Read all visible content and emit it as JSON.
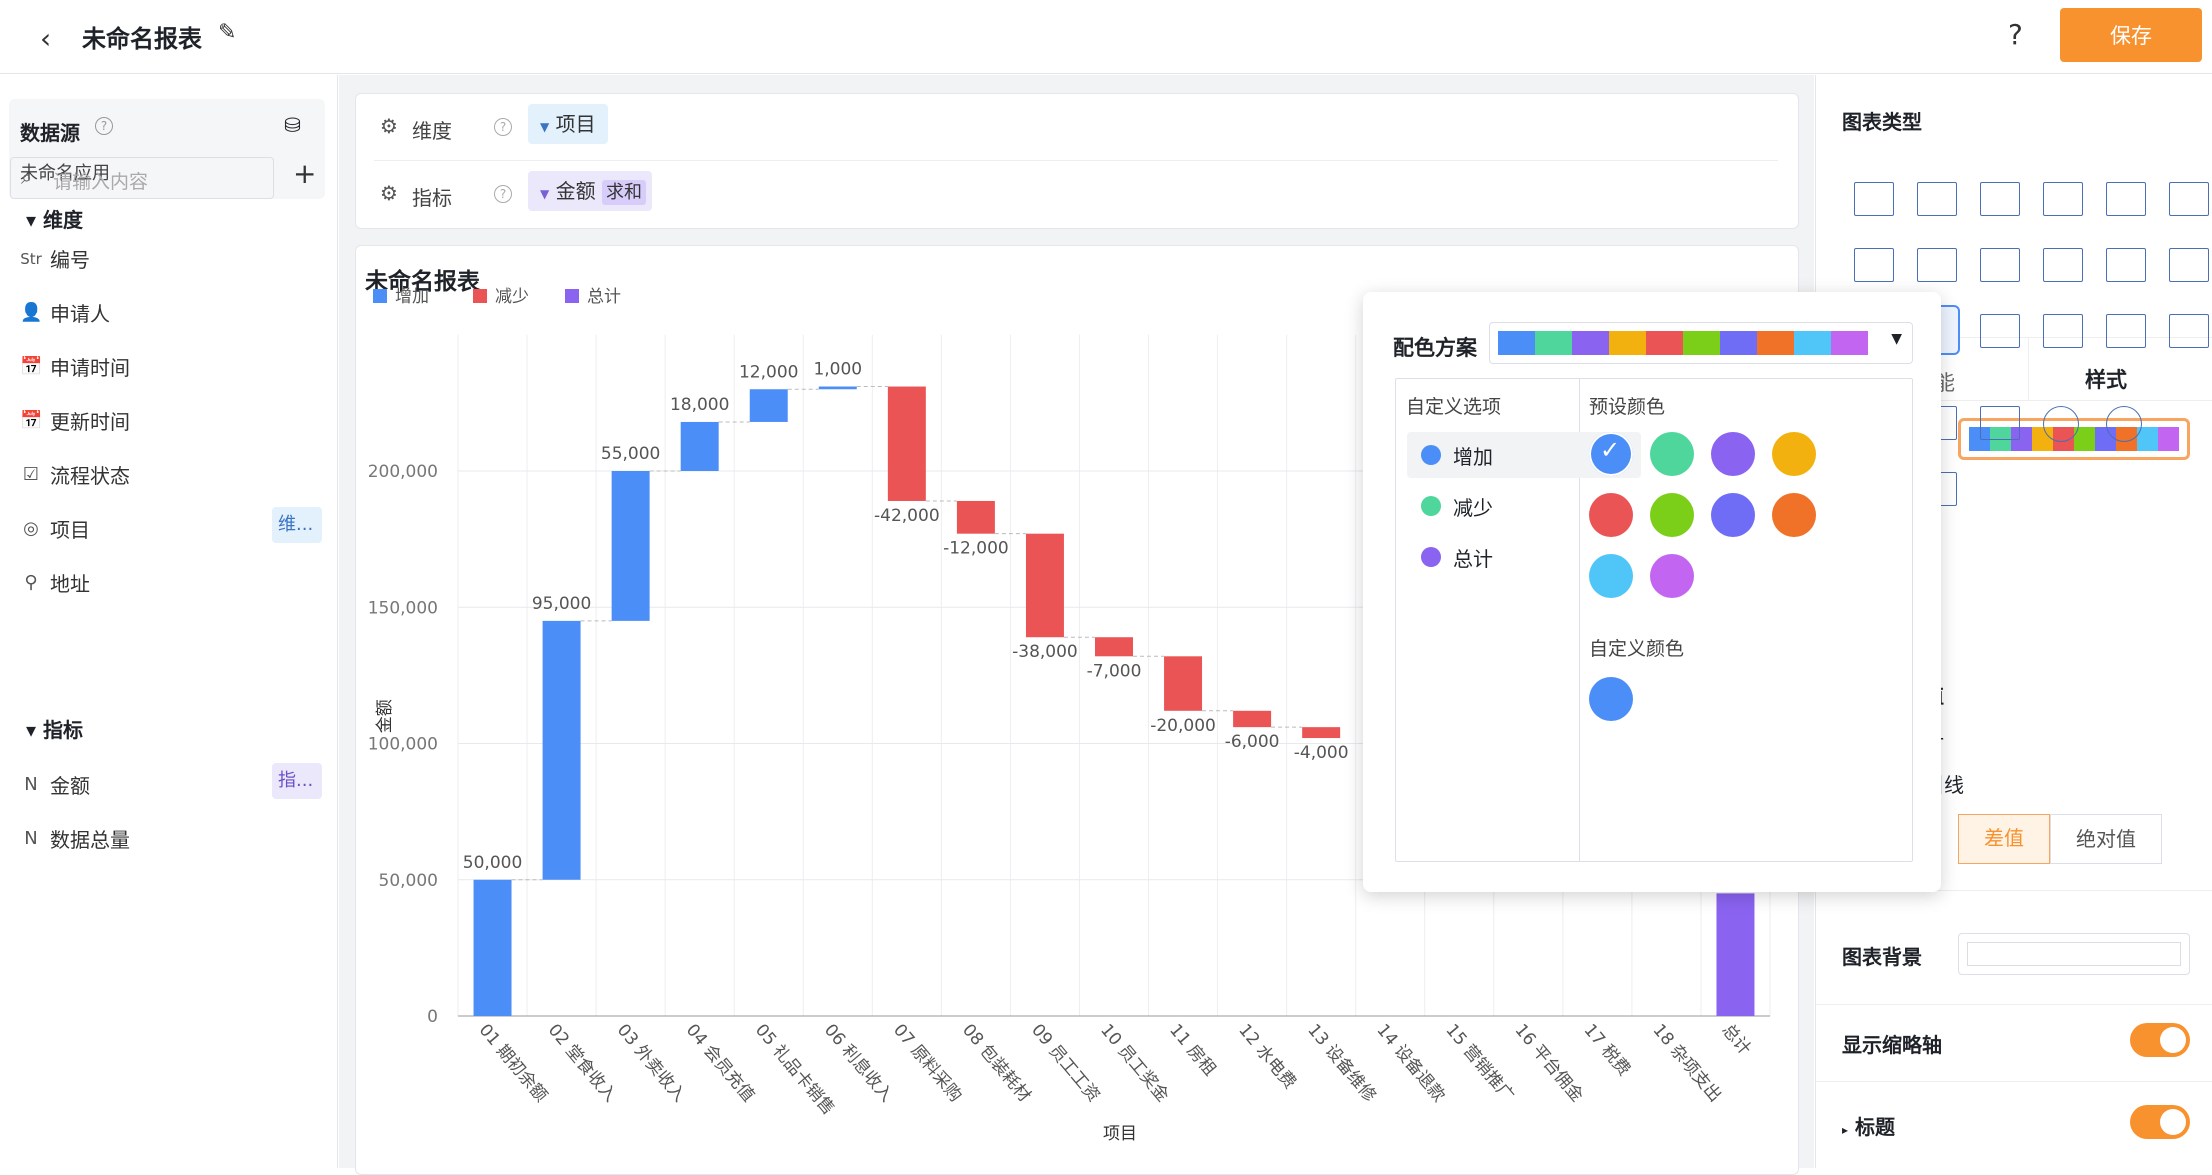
{
  "header": {
    "back_icon": "chevron-left-icon",
    "title": "未命名报表",
    "edit_icon": "pencil-icon",
    "help_icon": "question-icon",
    "help_text": "?",
    "save_label": "保存"
  },
  "sidebar": {
    "datasource_label": "数据源",
    "datasource_name": "未命名应用",
    "search_placeholder": "请输入内容",
    "add_icon": "plus-icon",
    "dimension_header": "维度",
    "measure_header": "指标",
    "dimensions": [
      {
        "icon_text": "Str",
        "icon": "string-icon",
        "label": "编号"
      },
      {
        "icon_text": "👤",
        "icon": "person-icon",
        "label": "申请人"
      },
      {
        "icon_text": "📅",
        "icon": "calendar-icon",
        "label": "申请时间"
      },
      {
        "icon_text": "📅",
        "icon": "calendar-icon",
        "label": "更新时间"
      },
      {
        "icon_text": "☑",
        "icon": "checkbox-icon",
        "label": "流程状态"
      },
      {
        "icon_text": "◎",
        "icon": "radio-icon",
        "label": "项目",
        "tag": "维..."
      },
      {
        "icon_text": "⚲",
        "icon": "location-icon",
        "label": "地址"
      }
    ],
    "measures": [
      {
        "icon_text": "N",
        "icon": "number-icon",
        "label": "金额",
        "tag": "指..."
      },
      {
        "icon_text": "N",
        "icon": "number-icon",
        "label": "数据总量"
      }
    ]
  },
  "fields": {
    "dimension_label": "维度",
    "dimension_value": "项目",
    "measure_label": "指标",
    "measure_value": "金额",
    "measure_agg": "求和"
  },
  "chart_card": {
    "title": "未命名报表"
  },
  "chart_data": {
    "type": "bar",
    "subtype": "waterfall",
    "xlabel": "项目",
    "ylabel": "金额",
    "ylim": [
      0,
      250000
    ],
    "yticks": [
      {
        "v": 0,
        "t": "0"
      },
      {
        "v": 50000,
        "t": "50,000"
      },
      {
        "v": 100000,
        "t": "100,000"
      },
      {
        "v": 150000,
        "t": "150,000"
      },
      {
        "v": 200000,
        "t": "200,000"
      }
    ],
    "legend": [
      {
        "name": "增加",
        "color": "#4c8ef7"
      },
      {
        "name": "减少",
        "color": "#ea5455"
      },
      {
        "name": "总计",
        "color": "#8a63f0"
      }
    ],
    "categories": [
      "01 期初余额",
      "02 堂食收入",
      "03 外卖收入",
      "04 会员充值",
      "05 礼品卡销售",
      "06 利息收入",
      "07 原料采购",
      "08 包装耗材",
      "09 员工工资",
      "10 员工奖金",
      "11 房租",
      "12 水电费",
      "13 设备维修",
      "14 设备退款",
      "15 营销推广",
      "16 平台佣金",
      "17 税费",
      "18 杂项支出",
      "总计"
    ],
    "bars": [
      {
        "start": 0,
        "end": 50000,
        "kind": "inc",
        "label": "50,000"
      },
      {
        "start": 50000,
        "end": 145000,
        "kind": "inc",
        "label": "95,000"
      },
      {
        "start": 145000,
        "end": 200000,
        "kind": "inc",
        "label": "55,000"
      },
      {
        "start": 200000,
        "end": 218000,
        "kind": "inc",
        "label": "18,000"
      },
      {
        "start": 218000,
        "end": 230000,
        "kind": "inc",
        "label": "12,000"
      },
      {
        "start": 230000,
        "end": 231000,
        "kind": "inc",
        "label": "1,000"
      },
      {
        "start": 231000,
        "end": 189000,
        "kind": "dec",
        "label": "-42,000"
      },
      {
        "start": 189000,
        "end": 177000,
        "kind": "dec",
        "label": "-12,000"
      },
      {
        "start": 177000,
        "end": 139000,
        "kind": "dec",
        "label": "-38,000"
      },
      {
        "start": 139000,
        "end": 132000,
        "kind": "dec",
        "label": "-7,000"
      },
      {
        "start": 132000,
        "end": 112000,
        "kind": "dec",
        "label": "-20,000"
      },
      {
        "start": 112000,
        "end": 106000,
        "kind": "dec",
        "label": "-6,000"
      },
      {
        "start": 106000,
        "end": 102000,
        "kind": "dec",
        "label": "-4,000"
      },
      null,
      null,
      null,
      null,
      null,
      {
        "start": 0,
        "end": 45000,
        "kind": "total",
        "label": ""
      }
    ]
  },
  "popup": {
    "scheme_label": "配色方案",
    "scheme_colors": [
      "#4c8ef7",
      "#4fd69c",
      "#8a63f0",
      "#f2b10f",
      "#ea5455",
      "#7ccf18",
      "#6f6cf5",
      "#f07128",
      "#4fc6f7",
      "#c266f2"
    ],
    "custom_options_label": "自定义选项",
    "options": [
      {
        "label": "增加",
        "color": "#4c8ef7"
      },
      {
        "label": "减少",
        "color": "#4fd69c"
      },
      {
        "label": "总计",
        "color": "#8a63f0"
      }
    ],
    "preset_label": "预设颜色",
    "preset_colors": [
      "#4c8ef7",
      "#4fd69c",
      "#8a63f0",
      "#f2b10f",
      "#ea5455",
      "#7ccf18",
      "#6f6cf5",
      "#f07128",
      "#4fc6f7",
      "#c266f2"
    ],
    "custom_color_label": "自定义颜色",
    "custom_color": "#4c8ef7"
  },
  "right_panel": {
    "chart_type_label": "图表类型",
    "tab_style": "样式",
    "tab_partial": "能",
    "partial_1": "值",
    "partial_2": "计",
    "partial_3": "引线",
    "diff_label": "差值",
    "abs_label": "绝对值",
    "bg_label": "图表背景",
    "thumbnail_label": "显示缩略轴",
    "title_label": "标题"
  }
}
